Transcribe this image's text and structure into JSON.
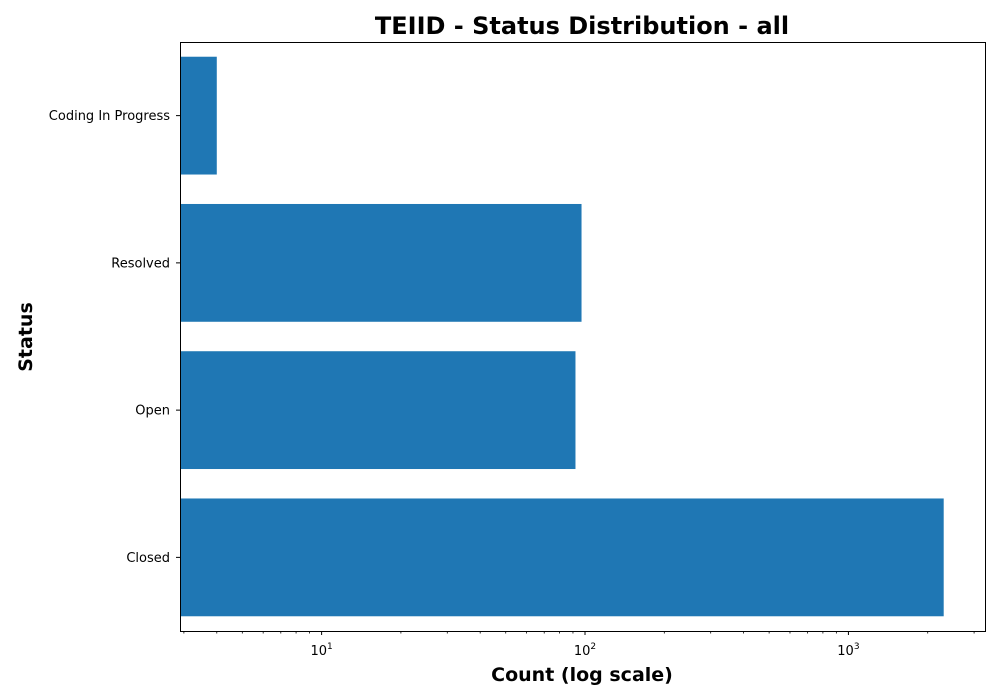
{
  "chart_data": {
    "type": "bar",
    "orientation": "horizontal",
    "title": "TEIID - Status Distribution - all",
    "xlabel": "Count (log scale)",
    "ylabel": "Status",
    "x_scale": "log",
    "xlim": [
      2.9,
      3300
    ],
    "categories": [
      "Coding In Progress",
      "Resolved",
      "Open",
      "Closed"
    ],
    "values": [
      4,
      97,
      92,
      2300
    ],
    "x_ticks": [
      {
        "base": "10",
        "exp": "1",
        "value": 10
      },
      {
        "base": "10",
        "exp": "2",
        "value": 100
      },
      {
        "base": "10",
        "exp": "3",
        "value": 1000
      }
    ],
    "bar_color": "#1f77b4",
    "grid": false,
    "legend": "none"
  }
}
